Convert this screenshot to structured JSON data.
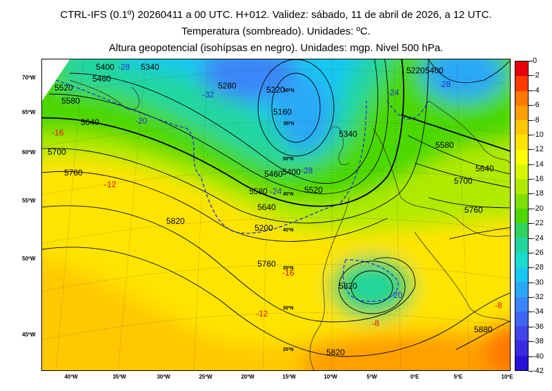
{
  "title": {
    "line1": "CTRL-IFS (0.1º) 20260411 a 00 UTC. H+012. Validez: sábado, 11 de abril de 2026, a 12 UTC.",
    "line2": "Temperatura (sombreado). Unidades: ºC.",
    "line3": "Altura geopotencial (isohípsas en negro). Unidades: mgp. Nivel 500 hPa."
  },
  "colorbar": {
    "labels": [
      "0",
      "-2",
      "-4",
      "-6",
      "-8",
      "-10",
      "-12",
      "-14",
      "-16",
      "-18",
      "-20",
      "-22",
      "-24",
      "-26",
      "-28",
      "-30",
      "-32",
      "-34",
      "-36",
      "-38",
      "-40",
      "-42"
    ],
    "colors": [
      "#e8000b",
      "#ff3a00",
      "#ff7800",
      "#ff9f00",
      "#ffc800",
      "#ffe400",
      "#ffff00",
      "#d8f500",
      "#b0ea00",
      "#7ee000",
      "#4cd800",
      "#2fd25c",
      "#22d6a0",
      "#18dcd0",
      "#19c8f0",
      "#2aa8f8",
      "#3a86f8",
      "#3f64f0",
      "#3f44e6",
      "#3a2ae0",
      "#2814d8"
    ]
  },
  "axes": {
    "lon_labels": [
      "40ºW",
      "35ºW",
      "30ºW",
      "25ºW",
      "20ºW",
      "15ºW",
      "10ºW",
      "5ºW",
      "0ºE",
      "5ºE",
      "10ºE"
    ],
    "lat_labels": [
      "70ºW",
      "65ºW",
      "60ºW",
      "55ºW",
      "50ºW",
      "45ºW"
    ],
    "inner_lat_labels": [
      "60ºN",
      "55ºN",
      "50ºN",
      "45ºN",
      "40ºN",
      "35ºN",
      "30ºN",
      "25ºN"
    ]
  },
  "contours": {
    "geopotential": [
      "5400",
      "5340",
      "5460",
      "5520",
      "5580",
      "5640",
      "5700",
      "5760",
      "5820",
      "5280",
      "5220",
      "5160",
      "5460",
      "5400",
      "5580",
      "5520",
      "5640",
      "5700",
      "5760",
      "5820",
      "5880",
      "5200",
      "5340",
      "5580",
      "5640",
      "5760",
      "5820",
      "5400",
      "5220"
    ],
    "temperature": [
      "-32",
      "-28",
      "-24",
      "-20",
      "-16",
      "-12",
      "-16",
      "-12",
      "-8",
      "-8",
      "-20",
      "-28",
      "-28",
      "-24"
    ]
  },
  "field": {
    "palette_note": "",
    "cold_core_center": "north-of-scotland",
    "cutoff_low": "gulf-of-cadiz"
  }
}
